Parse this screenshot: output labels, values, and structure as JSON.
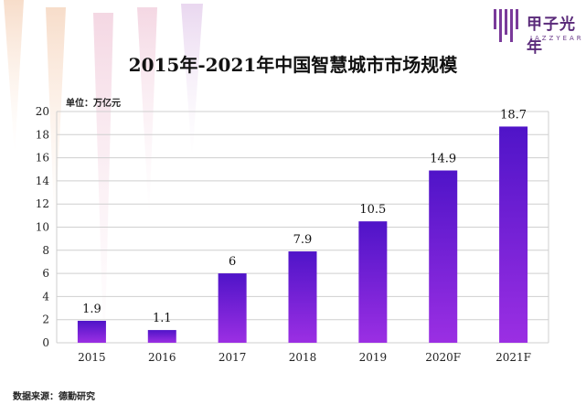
{
  "header": {
    "title": "2015年-2021年中国智慧城市市场规模",
    "unit": "单位：万亿元"
  },
  "footer": {
    "source": "数据来源：德勤研究"
  },
  "logo": {
    "name": "甲子光年",
    "subname": "JAZZYEAR",
    "icon": "bars-logo-icon"
  },
  "colors": {
    "bar_top": "#4f14c8",
    "bar_bottom": "#9b2fe3",
    "grid": "#cfcfcf"
  },
  "chart_data": {
    "type": "bar",
    "title": "2015年-2021年中国智慧城市市场规模",
    "categories": [
      "2015",
      "2016",
      "2017",
      "2018",
      "2019",
      "2020F",
      "2021F"
    ],
    "values": [
      1.9,
      1.1,
      6,
      7.9,
      10.5,
      14.9,
      18.7
    ],
    "value_labels": [
      "1.9",
      "1.1",
      "6",
      "7.9",
      "10.5",
      "14.9",
      "18.7"
    ],
    "yticks": [
      "0",
      "2",
      "4",
      "6",
      "8",
      "10",
      "12",
      "14",
      "16",
      "18",
      "20"
    ],
    "ylim": [
      0,
      20
    ],
    "ylabel": "单位：万亿元",
    "xlabel": "",
    "grid": true,
    "legend": "none"
  }
}
